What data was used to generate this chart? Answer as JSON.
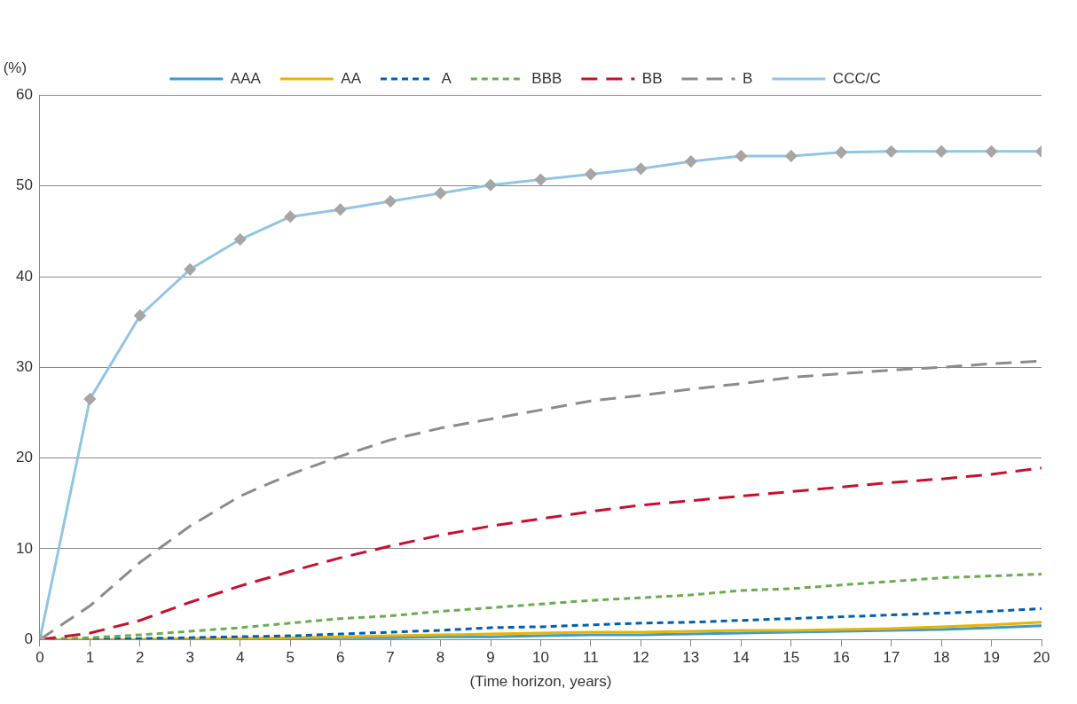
{
  "chart_data": {
    "type": "line",
    "xlabel": "(Time horizon, years)",
    "ylabel": "(%)",
    "x": [
      0,
      1,
      2,
      3,
      4,
      5,
      6,
      7,
      8,
      9,
      10,
      11,
      12,
      13,
      14,
      15,
      16,
      17,
      18,
      19,
      20
    ],
    "xlim": [
      0,
      20
    ],
    "xticks": [
      0,
      1,
      2,
      3,
      4,
      5,
      6,
      7,
      8,
      9,
      10,
      11,
      12,
      13,
      14,
      15,
      16,
      17,
      18,
      19,
      20
    ],
    "ylim": [
      0,
      60
    ],
    "yticks": [
      0,
      10,
      20,
      30,
      40,
      50,
      60
    ],
    "grid": "y",
    "legend": "top",
    "marker": "none",
    "series": [
      {
        "name": "AAA",
        "color": "#3c9bd0",
        "line_style": "solid",
        "values": [
          null,
          null,
          0,
          0,
          0.1,
          0.1,
          0.2,
          0.2,
          0.3,
          0.3,
          0.4,
          0.5,
          0.5,
          0.6,
          0.7,
          0.8,
          0.9,
          1.0,
          1.1,
          1.3,
          1.5
        ]
      },
      {
        "name": "AA",
        "color": "#e8b400",
        "line_style": "solid",
        "values": [
          0,
          0,
          0,
          0.1,
          0.1,
          0.2,
          0.3,
          0.4,
          0.5,
          0.6,
          0.7,
          0.8,
          0.8,
          0.9,
          1.0,
          1.0,
          1.1,
          1.2,
          1.4,
          1.6,
          1.9
        ]
      },
      {
        "name": "A",
        "color": "#0060b0",
        "line_style": "dotted",
        "values": [
          0,
          0,
          0.1,
          0.2,
          0.3,
          0.4,
          0.6,
          0.8,
          1.0,
          1.3,
          1.4,
          1.6,
          1.8,
          1.9,
          2.1,
          2.3,
          2.5,
          2.7,
          2.9,
          3.1,
          3.4
        ]
      },
      {
        "name": "BBB",
        "color": "#6aad50",
        "line_style": "dotted",
        "values": [
          0,
          0.2,
          0.5,
          0.9,
          1.3,
          1.8,
          2.3,
          2.6,
          3.1,
          3.5,
          3.9,
          4.3,
          4.6,
          4.9,
          5.4,
          5.6,
          6.0,
          6.4,
          6.8,
          7.0,
          7.2
        ]
      },
      {
        "name": "BB",
        "color": "#c8102e",
        "line_style": "dashed",
        "values": [
          0,
          0.7,
          2.1,
          4.1,
          5.9,
          7.5,
          9.0,
          10.3,
          11.5,
          12.5,
          13.3,
          14.1,
          14.8,
          15.3,
          15.8,
          16.3,
          16.8,
          17.3,
          17.7,
          18.2,
          18.9
        ]
      },
      {
        "name": "B",
        "color": "#8c8c8c",
        "line_style": "dashed",
        "values": [
          0,
          3.7,
          8.5,
          12.5,
          15.8,
          18.2,
          20.2,
          22.0,
          23.3,
          24.3,
          25.3,
          26.3,
          26.9,
          27.6,
          28.2,
          28.9,
          29.3,
          29.7,
          30.0,
          30.4,
          30.7
        ]
      },
      {
        "name": "CCC/C",
        "color": "#92c5e4",
        "line_style": "solid",
        "marker": "diamond",
        "values": [
          0,
          26.5,
          35.7,
          40.8,
          44.1,
          46.6,
          47.4,
          48.3,
          49.2,
          50.1,
          50.7,
          51.3,
          51.9,
          52.7,
          53.3,
          53.3,
          53.7,
          53.8,
          53.8,
          53.8,
          53.8
        ]
      }
    ]
  }
}
